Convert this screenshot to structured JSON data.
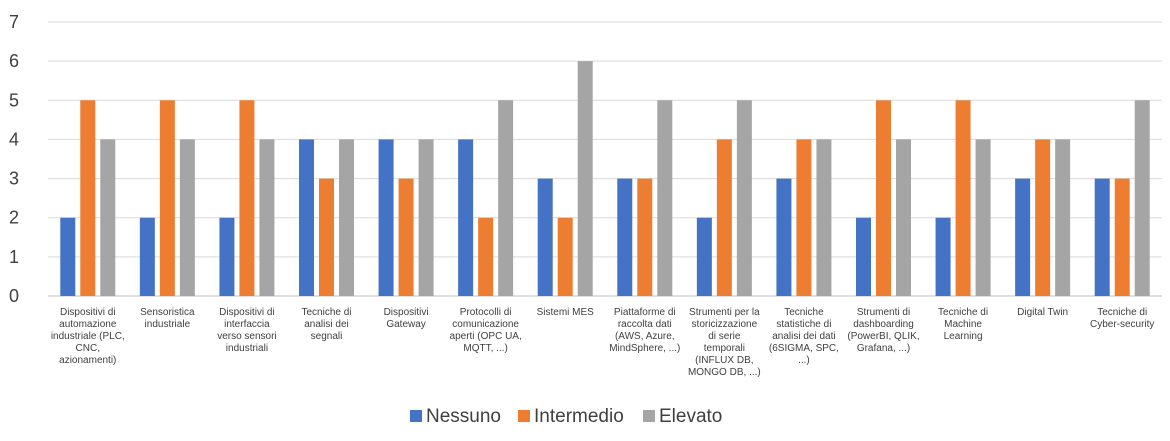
{
  "chart_data": {
    "type": "bar",
    "title": "",
    "xlabel": "",
    "ylabel": "",
    "ylim": [
      0,
      7
    ],
    "yticks": [
      0,
      1,
      2,
      3,
      4,
      5,
      6,
      7
    ],
    "grid": true,
    "legend_position": "bottom",
    "categories": [
      [
        "Dispositivi di",
        "automazione",
        "industriale (PLC,",
        "CNC,",
        "azionamenti)"
      ],
      [
        "Sensoristica",
        "industriale"
      ],
      [
        "Dispositivi di",
        "interfaccia",
        "verso sensori",
        "industriali"
      ],
      [
        "Tecniche di",
        "analisi dei",
        "segnali"
      ],
      [
        "Dispositivi",
        "Gateway"
      ],
      [
        "Protocolli di",
        "comunicazione",
        "aperti (OPC UA,",
        "MQTT, ...)"
      ],
      [
        "Sistemi MES"
      ],
      [
        "Piattaforme di",
        "raccolta dati",
        "(AWS, Azure,",
        "MindSphere, ...)"
      ],
      [
        "Strumenti per la",
        "storicizzazione",
        "di serie",
        "temporali",
        "(INFLUX DB,",
        "MONGO DB, ...)"
      ],
      [
        "Tecniche",
        "statistiche di",
        "analisi dei dati",
        "(6SIGMA, SPC,",
        "...)"
      ],
      [
        "Strumenti di",
        "dashboarding",
        "(PowerBI, QLIK,",
        "Grafana, ...)"
      ],
      [
        "Tecniche di",
        "Machine",
        "Learning"
      ],
      [
        "Digital Twin"
      ],
      [
        "Tecniche di",
        "Cyber-security"
      ]
    ],
    "series": [
      {
        "name": "Nessuno",
        "color": "#4472C4",
        "values": [
          2,
          2,
          2,
          4,
          4,
          4,
          3,
          3,
          2,
          3,
          2,
          2,
          3,
          3
        ]
      },
      {
        "name": "Intermedio",
        "color": "#ED7D31",
        "values": [
          5,
          5,
          5,
          3,
          3,
          2,
          2,
          3,
          4,
          4,
          5,
          5,
          4,
          3
        ]
      },
      {
        "name": "Elevato",
        "color": "#A5A5A5",
        "values": [
          4,
          4,
          4,
          4,
          4,
          5,
          6,
          5,
          5,
          4,
          4,
          4,
          4,
          5
        ]
      }
    ],
    "gridline_color": "#D9D9D9",
    "axis_color": "#BFBFBF"
  }
}
